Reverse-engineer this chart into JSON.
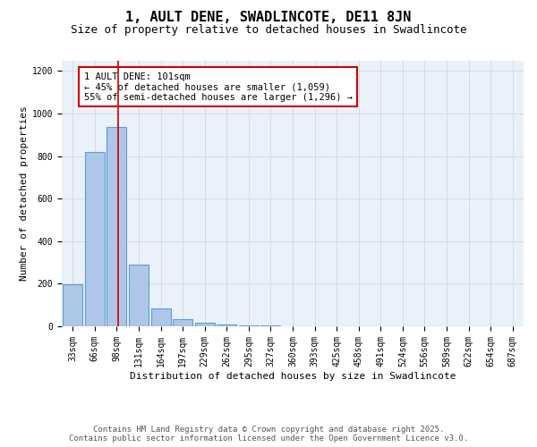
{
  "title1": "1, AULT DENE, SWADLINCOTE, DE11 8JN",
  "title2": "Size of property relative to detached houses in Swadlincote",
  "xlabel": "Distribution of detached houses by size in Swadlincote",
  "ylabel": "Number of detached properties",
  "bar_labels": [
    "33sqm",
    "66sqm",
    "98sqm",
    "131sqm",
    "164sqm",
    "197sqm",
    "229sqm",
    "262sqm",
    "295sqm",
    "327sqm",
    "360sqm",
    "393sqm",
    "425sqm",
    "458sqm",
    "491sqm",
    "524sqm",
    "556sqm",
    "589sqm",
    "622sqm",
    "654sqm",
    "687sqm"
  ],
  "bar_values": [
    197,
    820,
    935,
    290,
    85,
    35,
    18,
    10,
    5,
    5,
    0,
    0,
    0,
    0,
    0,
    0,
    0,
    0,
    0,
    0,
    0
  ],
  "bar_color": "#aec6e8",
  "bar_edge_color": "#5a9fd4",
  "bar_linewidth": 0.8,
  "property_line_x": 2.08,
  "property_line_color": "#cc0000",
  "annotation_text": "1 AULT DENE: 101sqm\n← 45% of detached houses are smaller (1,059)\n55% of semi-detached houses are larger (1,296) →",
  "annotation_box_color": "white",
  "annotation_box_edge_color": "#cc0000",
  "ylim": [
    0,
    1250
  ],
  "yticks": [
    0,
    200,
    400,
    600,
    800,
    1000,
    1200
  ],
  "grid_color": "#d0dde8",
  "background_color": "#eaf1f8",
  "footer_line1": "Contains HM Land Registry data © Crown copyright and database right 2025.",
  "footer_line2": "Contains public sector information licensed under the Open Government Licence v3.0.",
  "title1_fontsize": 11,
  "title2_fontsize": 9,
  "axis_label_fontsize": 8,
  "tick_fontsize": 7,
  "annotation_fontsize": 7.5,
  "footer_fontsize": 6.5
}
